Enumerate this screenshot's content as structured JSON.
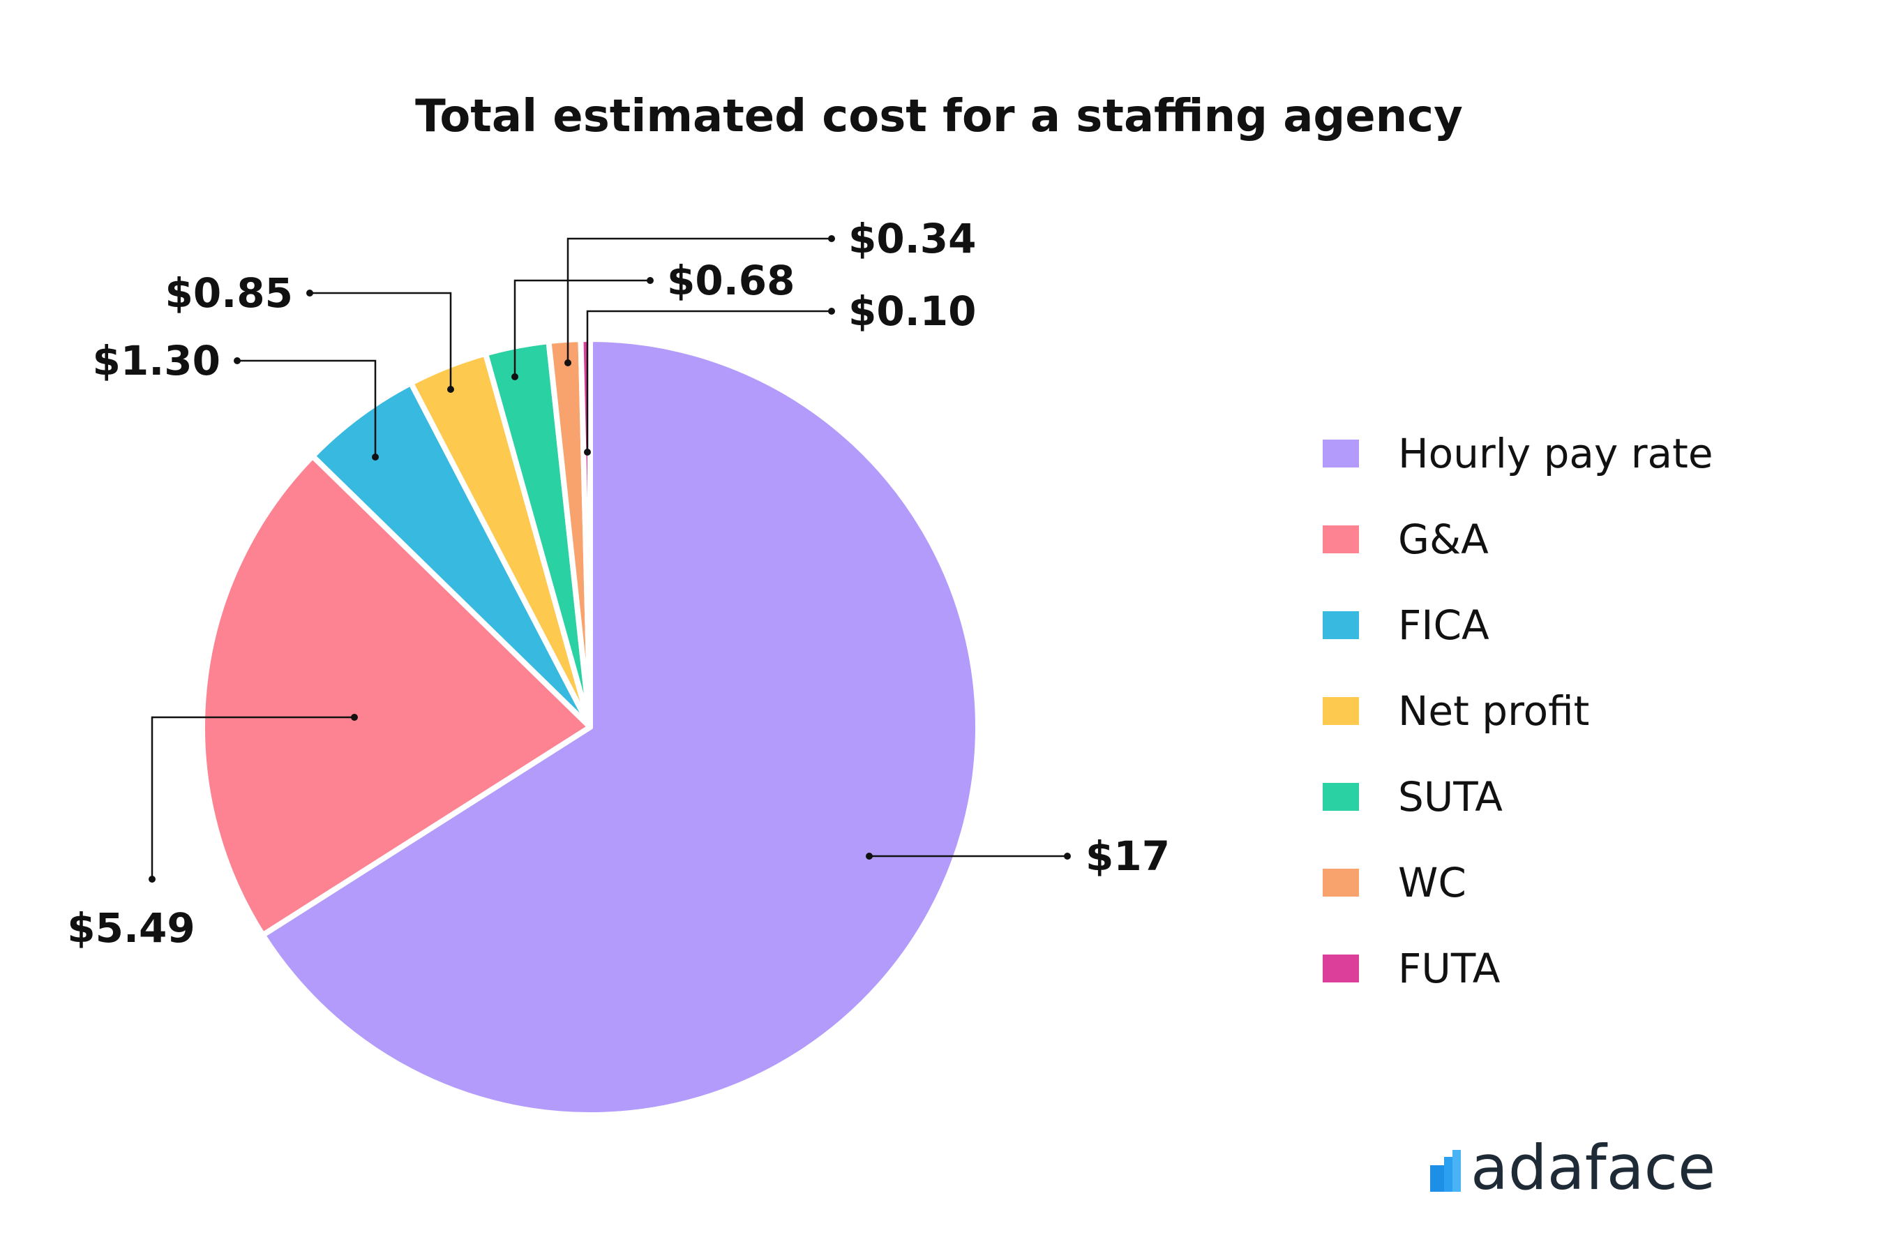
{
  "chart_data": {
    "type": "pie",
    "title": "Total estimated cost for a staffing agency",
    "slices": [
      {
        "name": "Hourly pay rate",
        "value": 17,
        "label": "$17",
        "color": "#b29bfb"
      },
      {
        "name": "G&A",
        "value": 5.49,
        "label": "$5.49",
        "color": "#fd8393"
      },
      {
        "name": "FICA",
        "value": 1.3,
        "label": "$1.30",
        "color": "#37b9e0"
      },
      {
        "name": "Net profit",
        "value": 0.85,
        "label": "$0.85",
        "color": "#fdc94f"
      },
      {
        "name": "SUTA",
        "value": 0.68,
        "label": "$0.68",
        "color": "#2ad1a3"
      },
      {
        "name": "WC",
        "value": 0.34,
        "label": "$0.34",
        "color": "#f8a26e"
      },
      {
        "name": "FUTA",
        "value": 0.1,
        "label": "$0.10",
        "color": "#dc3f99"
      }
    ],
    "legend_position": "right"
  },
  "brand": {
    "logo_text": "adaface",
    "logo_color": "#1d8fe6"
  }
}
